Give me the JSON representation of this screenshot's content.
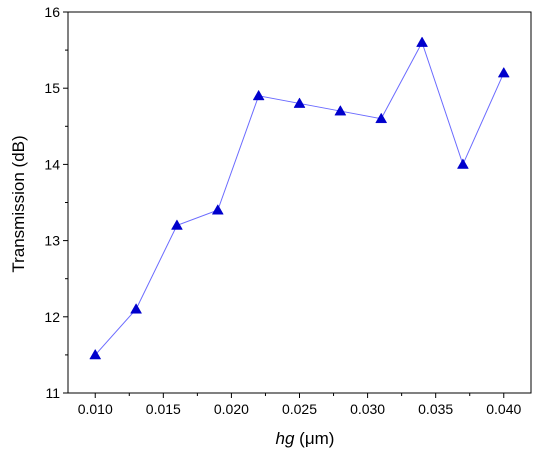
{
  "chart_data": {
    "type": "line",
    "xlabel": {
      "italic": "hg",
      "unit": " (μm)"
    },
    "ylabel": "Transmission (dB)",
    "xlim": [
      0.008,
      0.042
    ],
    "ylim": [
      11,
      16
    ],
    "xticks": [
      0.01,
      0.015,
      0.02,
      0.025,
      0.03,
      0.035,
      0.04
    ],
    "xtick_labels": [
      "0.010",
      "0.015",
      "0.020",
      "0.025",
      "0.030",
      "0.035",
      "0.040"
    ],
    "yticks": [
      11,
      12,
      13,
      14,
      15,
      16
    ],
    "ytick_labels": [
      "11",
      "12",
      "13",
      "14",
      "15",
      "16"
    ],
    "grid": false,
    "legend": "none",
    "series": [
      {
        "marker": "triangle-up",
        "line_color": "#6b6bff",
        "marker_color": "#0000cc",
        "x": [
          0.01,
          0.013,
          0.016,
          0.019,
          0.022,
          0.025,
          0.028,
          0.031,
          0.034,
          0.037,
          0.04
        ],
        "y": [
          11.5,
          12.1,
          13.2,
          13.4,
          14.9,
          14.8,
          14.7,
          14.6,
          15.6,
          14.0,
          15.2
        ]
      }
    ]
  }
}
